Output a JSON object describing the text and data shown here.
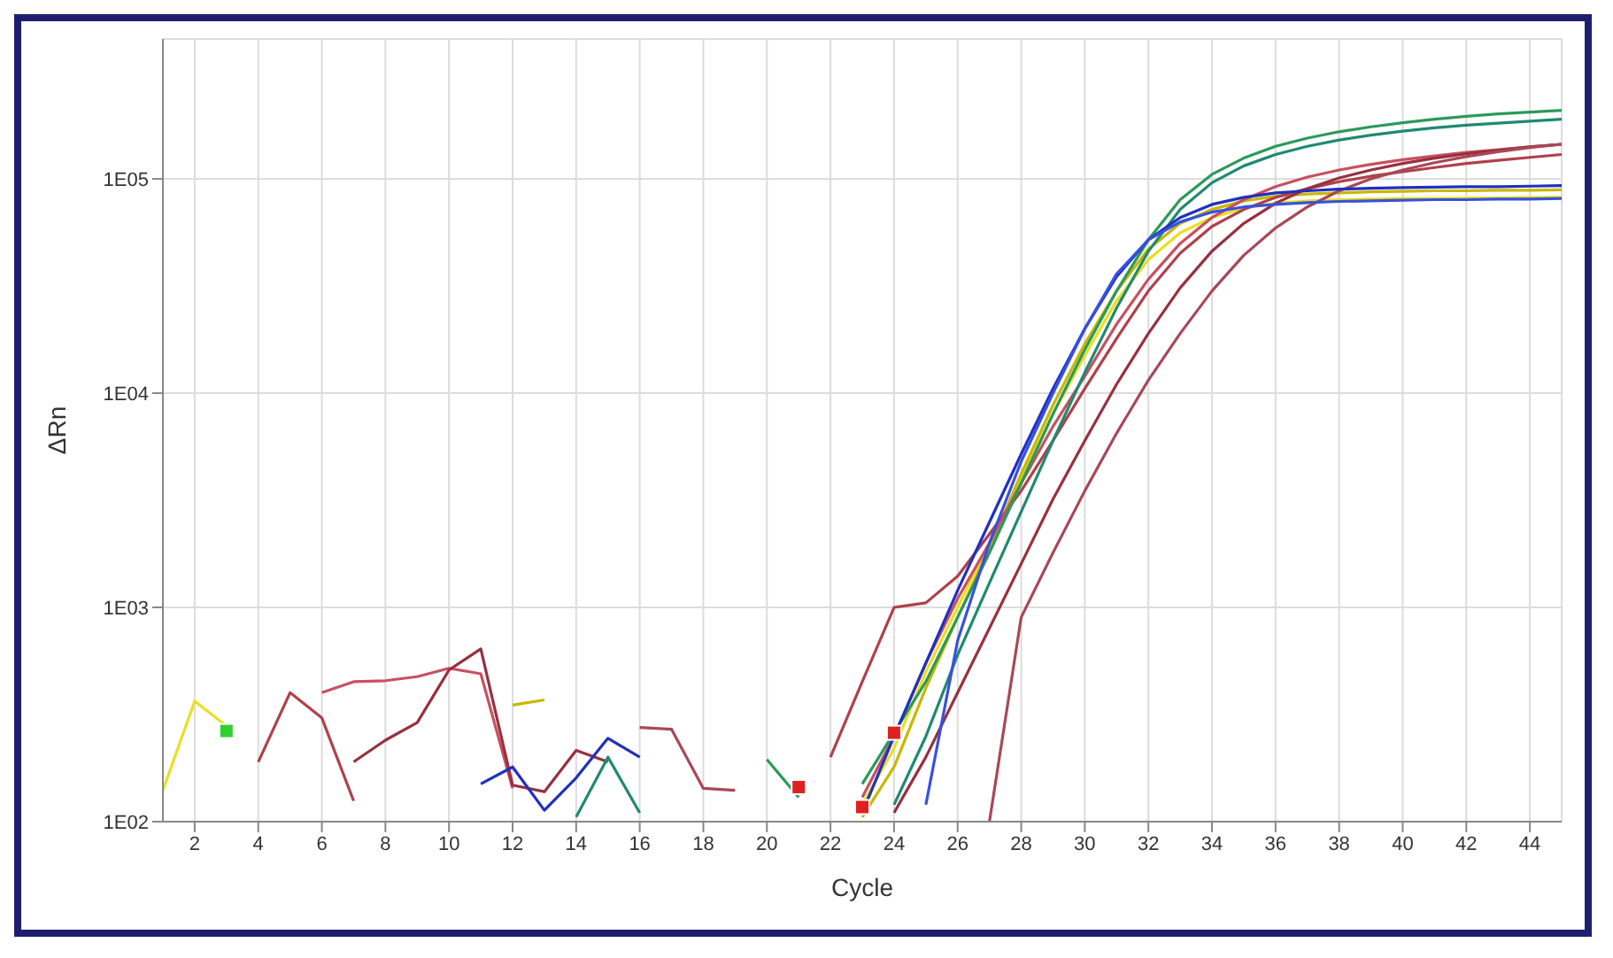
{
  "chart_data": {
    "type": "line",
    "xlabel": "Cycle",
    "ylabel": "ΔRn",
    "log": "y",
    "grid": true,
    "x": [
      1,
      2,
      3,
      4,
      5,
      6,
      7,
      8,
      9,
      10,
      11,
      12,
      13,
      14,
      15,
      16,
      17,
      18,
      19,
      20,
      21,
      22,
      23,
      24,
      25,
      26,
      27,
      28,
      29,
      30,
      31,
      32,
      33,
      34,
      35,
      36,
      37,
      38,
      39,
      40,
      41,
      42,
      43,
      44,
      45
    ],
    "xlim": [
      1,
      45
    ],
    "xticks": [
      2,
      4,
      6,
      8,
      10,
      12,
      14,
      16,
      18,
      20,
      22,
      24,
      26,
      28,
      30,
      32,
      34,
      36,
      38,
      40,
      42,
      44
    ],
    "ylim": [
      100,
      450000
    ],
    "yticks": [
      {
        "value": 100,
        "label": "1E02"
      },
      {
        "value": 1000,
        "label": "1E03"
      },
      {
        "value": 10000,
        "label": "1E04"
      },
      {
        "value": 100000,
        "label": "1E05"
      }
    ],
    "series": [
      {
        "color": "#e8e020",
        "values": [
          140,
          365,
          280,
          null,
          null,
          null,
          null,
          null,
          null,
          null,
          null,
          null,
          null,
          null,
          null,
          null,
          null,
          null,
          null,
          null,
          null,
          null,
          120,
          220,
          500,
          1000,
          2000,
          4000,
          8000,
          15000,
          27000,
          42000,
          56000,
          66000,
          73000,
          77000,
          79000,
          80000,
          80500,
          81000,
          81000,
          81500,
          81500,
          82000,
          82000
        ]
      },
      {
        "color": "#c8b800",
        "values": [
          null,
          null,
          null,
          null,
          null,
          null,
          null,
          null,
          null,
          null,
          null,
          350,
          370,
          null,
          null,
          null,
          null,
          null,
          null,
          null,
          null,
          null,
          105,
          180,
          420,
          900,
          1900,
          4200,
          8800,
          17000,
          30000,
          47000,
          62000,
          72000,
          79000,
          83000,
          85000,
          86000,
          87000,
          87500,
          88000,
          88000,
          88500,
          88500,
          89000
        ]
      },
      {
        "color": "#b0404a",
        "values": [
          null,
          null,
          null,
          190,
          400,
          305,
          125,
          null,
          null,
          null,
          null,
          null,
          null,
          null,
          null,
          null,
          null,
          null,
          null,
          null,
          null,
          200,
          450,
          1000,
          1050,
          1400,
          2200,
          3500,
          6000,
          10500,
          18000,
          30000,
          45000,
          60000,
          72000,
          82000,
          90000,
          97000,
          103000,
          108000,
          113000,
          118000,
          122000,
          126000,
          130000
        ]
      },
      {
        "color": "#c85060",
        "values": [
          null,
          null,
          null,
          null,
          null,
          400,
          450,
          455,
          475,
          520,
          490,
          143,
          null,
          null,
          null,
          null,
          null,
          null,
          null,
          null,
          null,
          null,
          130,
          250,
          550,
          1100,
          2000,
          3800,
          7000,
          12000,
          21000,
          34000,
          50000,
          66000,
          80000,
          92000,
          102000,
          110000,
          117000,
          123000,
          128000,
          133000,
          137000,
          141000,
          145000
        ]
      },
      {
        "color": "#983040",
        "values": [
          null,
          null,
          null,
          null,
          null,
          null,
          190,
          240,
          290,
          510,
          640,
          148,
          138,
          215,
          190,
          null,
          null,
          null,
          null,
          null,
          null,
          null,
          null,
          110,
          200,
          400,
          800,
          1600,
          3200,
          6000,
          11000,
          19000,
          31000,
          46000,
          62000,
          77000,
          90000,
          101000,
          110000,
          118000,
          125000,
          131000,
          136000,
          141000,
          145000
        ]
      },
      {
        "color": "#a84858",
        "values": [
          null,
          null,
          null,
          null,
          null,
          null,
          null,
          null,
          null,
          null,
          null,
          null,
          null,
          null,
          null,
          275,
          270,
          143,
          140,
          null,
          null,
          null,
          null,
          null,
          null,
          null,
          100,
          900,
          1800,
          3500,
          6500,
          11500,
          19000,
          30000,
          44000,
          59000,
          74000,
          88000,
          100000,
          110000,
          119000,
          127000,
          134000,
          140000,
          145000
        ]
      },
      {
        "color": "#2a9a5a",
        "values": [
          null,
          null,
          null,
          null,
          null,
          null,
          null,
          null,
          null,
          null,
          null,
          null,
          null,
          null,
          null,
          null,
          null,
          null,
          null,
          195,
          130,
          null,
          150,
          260,
          450,
          900,
          1800,
          3800,
          8000,
          16000,
          30000,
          52000,
          80000,
          105000,
          125000,
          142000,
          155000,
          166000,
          175000,
          183000,
          190000,
          196000,
          201000,
          205000,
          209000
        ]
      },
      {
        "color": "#1f8a70",
        "values": [
          null,
          null,
          null,
          null,
          null,
          null,
          null,
          null,
          null,
          null,
          null,
          null,
          null,
          105,
          200,
          110,
          null,
          null,
          null,
          null,
          null,
          null,
          null,
          120,
          250,
          600,
          1300,
          2800,
          6000,
          12500,
          25000,
          46000,
          72000,
          96000,
          115000,
          130000,
          142000,
          152000,
          160000,
          167000,
          173000,
          178000,
          182000,
          186000,
          190000
        ]
      },
      {
        "color": "#2030c0",
        "values": [
          null,
          null,
          null,
          null,
          null,
          null,
          null,
          null,
          null,
          null,
          150,
          180,
          113,
          160,
          245,
          200,
          null,
          null,
          null,
          null,
          null,
          null,
          110,
          250,
          550,
          1200,
          2500,
          5200,
          10500,
          20000,
          35000,
          52000,
          66000,
          76000,
          82000,
          86000,
          88000,
          89500,
          90500,
          91000,
          91500,
          92000,
          92000,
          92500,
          93000
        ]
      },
      {
        "color": "#3850e0",
        "values": [
          null,
          null,
          null,
          null,
          null,
          null,
          null,
          null,
          null,
          null,
          null,
          null,
          null,
          null,
          null,
          null,
          null,
          null,
          null,
          null,
          null,
          null,
          null,
          null,
          120,
          700,
          2000,
          4800,
          10000,
          20000,
          36000,
          52000,
          63000,
          70000,
          74000,
          76000,
          77500,
          78500,
          79000,
          79500,
          80000,
          80000,
          80500,
          80500,
          81000
        ]
      },
      {
        "type": "scatter",
        "marker": "square",
        "x": [
          3,
          21,
          23,
          24
        ],
        "values": [
          265,
          145,
          117,
          260
        ],
        "colors": [
          "#30d030",
          "#e02020",
          "#e02020",
          "#e02020"
        ]
      }
    ]
  }
}
